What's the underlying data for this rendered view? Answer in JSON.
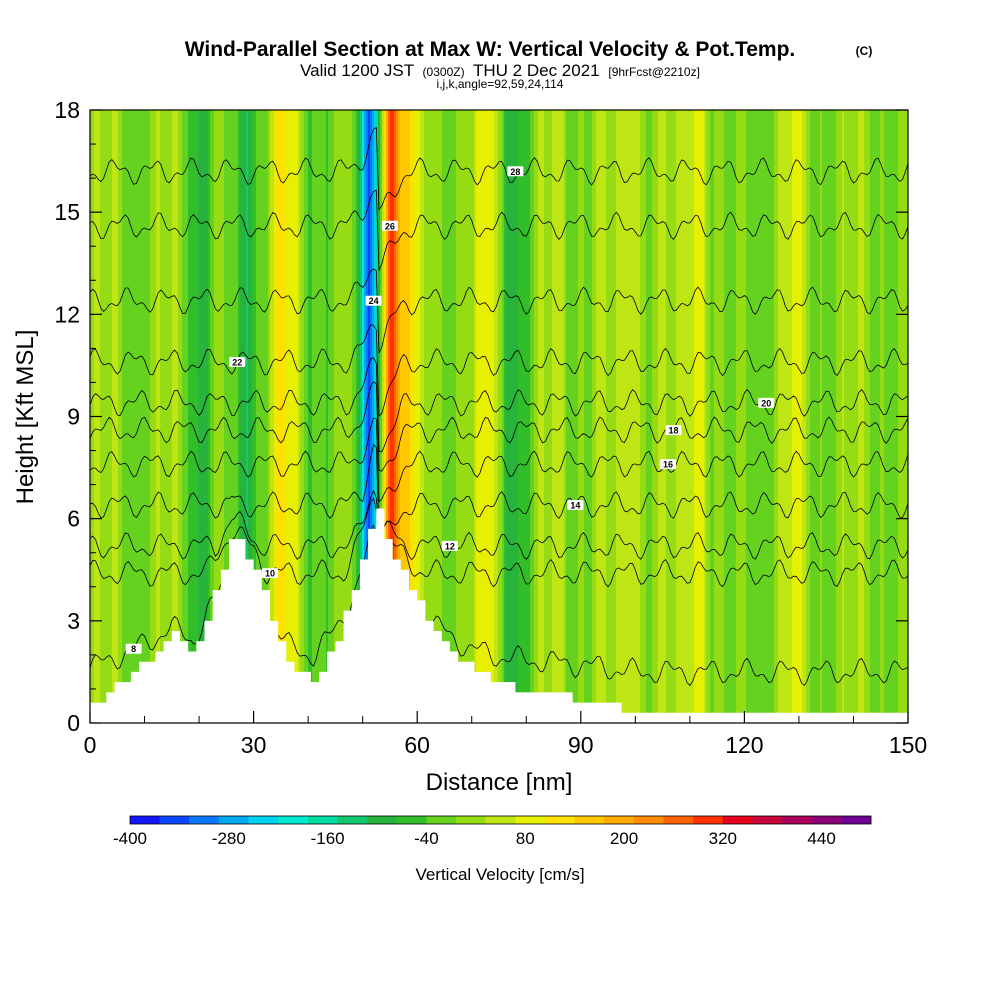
{
  "header": {
    "title": "Wind-Parallel Section at Max W: Vertical Velocity & Pot.Temp.",
    "copyright": "(C)",
    "valid_prefix": "Valid 1200 JST",
    "valid_utc": "(0300Z)",
    "valid_date": "THU 2 Dec 2021",
    "forecast": "[9hrFcst@2210z]",
    "section_info": "i,j,k,angle=92,59,24,114"
  },
  "colors": {
    "frame": "#000000",
    "terrain": "#ffffff",
    "contour": "#000000",
    "palette": [
      "#1414ff",
      "#0a46ff",
      "#0a78ff",
      "#00aaf0",
      "#00d2f0",
      "#00ebd2",
      "#00dca0",
      "#14c86e",
      "#28b43c",
      "#32be28",
      "#64d21e",
      "#96dc14",
      "#bee614",
      "#e6f000",
      "#ffe100",
      "#ffc800",
      "#ffaa00",
      "#ff8c00",
      "#ff6400",
      "#ff3200",
      "#e6001e",
      "#c8003c",
      "#aa005a",
      "#8c0078",
      "#6e0096"
    ]
  },
  "chart_data": {
    "type": "heatmap",
    "xlabel": "Distance [nm]",
    "ylabel": "Height [Kft MSL]",
    "xlim": [
      0,
      150
    ],
    "ylim": [
      0,
      18
    ],
    "xticks": [
      0,
      30,
      60,
      90,
      120,
      150
    ],
    "yticks": [
      0,
      3,
      6,
      9,
      12,
      15,
      18
    ],
    "colorbar": {
      "label": "Vertical Velocity [cm/s]",
      "range": [
        -400,
        500
      ],
      "levels_step": 40,
      "tick_labels": [
        -400,
        -280,
        -160,
        -40,
        80,
        200,
        320,
        440
      ]
    },
    "terrain_profile": {
      "x": [
        0,
        10,
        15,
        19,
        22,
        26,
        30,
        33,
        37,
        41,
        45,
        49,
        52,
        54,
        58,
        62,
        66,
        70,
        74,
        78,
        82,
        86,
        90,
        95,
        100,
        105,
        150
      ],
      "height": [
        0.5,
        1.8,
        2.6,
        2.0,
        3.5,
        5.5,
        4.5,
        3.0,
        1.5,
        1.2,
        2.5,
        4.5,
        6.5,
        5.5,
        4.0,
        3.0,
        2.2,
        1.5,
        1.2,
        1.0,
        0.9,
        0.8,
        0.7,
        0.5,
        0.3,
        0.3,
        0.3
      ]
    },
    "vertical_velocity_bands": [
      {
        "x": 20,
        "halfwidth": 2.0,
        "w": -80
      },
      {
        "x": 28,
        "halfwidth": 2.5,
        "w": -120
      },
      {
        "x": 35,
        "halfwidth": 2.5,
        "w": 120
      },
      {
        "x": 40,
        "halfwidth": 2.0,
        "w": -40
      },
      {
        "x": 51,
        "halfwidth": 2.0,
        "w": -360
      },
      {
        "x": 55,
        "halfwidth": 1.5,
        "w": 360
      },
      {
        "x": 58,
        "halfwidth": 1.5,
        "w": 160
      },
      {
        "x": 73,
        "halfwidth": 2.0,
        "w": 100
      },
      {
        "x": 78,
        "halfwidth": 3.0,
        "w": -80
      },
      {
        "x": 86,
        "halfwidth": 2.0,
        "w": 40
      },
      {
        "x": 99,
        "halfwidth": 2.0,
        "w": 80
      },
      {
        "x": 111,
        "halfwidth": 2.0,
        "w": 120
      },
      {
        "x": 117,
        "halfwidth": 2.0,
        "w": -60
      },
      {
        "x": 129,
        "halfwidth": 2.0,
        "w": 60
      }
    ],
    "theta_contours": [
      {
        "label": "8",
        "height": 1.5
      },
      {
        "label": "10",
        "height": 4.4
      },
      {
        "label": "12",
        "height": 5.2
      },
      {
        "label": "14",
        "height": 6.4
      },
      {
        "label": "16",
        "height": 7.6
      },
      {
        "label": "18",
        "height": 8.6
      },
      {
        "label": "20",
        "height": 9.4
      },
      {
        "label": "22",
        "height": 10.6
      },
      {
        "label": "24",
        "height": 12.4
      },
      {
        "label": "26",
        "height": 14.6
      },
      {
        "label": "28",
        "height": 16.2
      }
    ]
  }
}
